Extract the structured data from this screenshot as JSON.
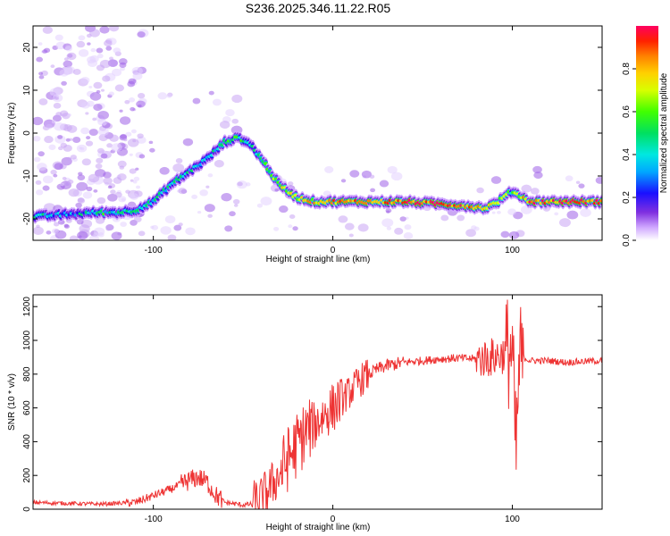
{
  "title": "S236.2025.346.11.22.R05",
  "chart_data": [
    {
      "type": "heatmap",
      "xlabel": "Height of straight line (km)",
      "ylabel": "Frequency (Hz)",
      "xlim": [
        -167,
        150
      ],
      "ylim": [
        -25,
        25
      ],
      "xticks": [
        -100,
        0,
        100
      ],
      "yticks": [
        -20,
        -10,
        0,
        10,
        20
      ],
      "colorbar": {
        "label": "Normalized spectral amplitude",
        "range": [
          0,
          1
        ],
        "ticks": [
          "0.0",
          "0.2",
          "0.4",
          "0.6",
          "0.8"
        ]
      },
      "ridge": {
        "x": [
          -167,
          -150,
          -130,
          -120,
          -110,
          -100,
          -90,
          -80,
          -70,
          -60,
          -52,
          -45,
          -38,
          -30,
          -20,
          -10,
          0,
          20,
          40,
          60,
          75,
          85,
          92,
          100,
          110,
          130,
          148
        ],
        "frequency": [
          -19.5,
          -19,
          -18.5,
          -18.5,
          -18,
          -16,
          -12,
          -9,
          -6,
          -2,
          -1,
          -3,
          -7,
          -12,
          -15,
          -16,
          -16,
          -16,
          -16,
          -16.5,
          -17,
          -17.5,
          -16,
          -13.5,
          -16,
          -16,
          -16
        ],
        "amplitude": [
          0.5,
          0.35,
          0.5,
          0.45,
          0.55,
          0.45,
          0.5,
          0.45,
          0.4,
          0.5,
          0.55,
          0.5,
          0.6,
          0.7,
          0.75,
          0.8,
          0.85,
          0.9,
          0.95,
          0.95,
          0.9,
          0.75,
          0.7,
          0.6,
          0.9,
          0.95,
          0.9
        ]
      }
    },
    {
      "type": "line",
      "xlabel": "Height of straight line (km)",
      "ylabel": "SNR (10 * v/v)",
      "xlim": [
        -167,
        150
      ],
      "ylim": [
        0,
        1270
      ],
      "xticks": [
        -100,
        0,
        100
      ],
      "yticks": [
        0,
        200,
        400,
        600,
        800,
        1000,
        1200
      ],
      "color": "#ee3333",
      "series": [
        {
          "name": "SNR",
          "x": [
            -167,
            -150,
            -130,
            -110,
            -100,
            -90,
            -80,
            -75,
            -70,
            -65,
            -60,
            -50,
            -45,
            -40,
            -35,
            -30,
            -25,
            -20,
            -15,
            -10,
            -5,
            0,
            5,
            10,
            15,
            20,
            25,
            30,
            40,
            50,
            60,
            70,
            80,
            90,
            95,
            100,
            102,
            104,
            106,
            110,
            120,
            130,
            140,
            150
          ],
          "y": [
            40,
            35,
            30,
            40,
            80,
            120,
            170,
            190,
            160,
            80,
            40,
            25,
            30,
            60,
            130,
            200,
            300,
            380,
            460,
            500,
            560,
            600,
            650,
            700,
            760,
            800,
            830,
            850,
            870,
            880,
            890,
            895,
            890,
            900,
            920,
            940,
            300,
            880,
            900,
            880,
            880,
            870,
            875,
            880
          ]
        }
      ],
      "noise": [
        {
          "from": -167,
          "to": -115,
          "amp": 12
        },
        {
          "from": -115,
          "to": -85,
          "amp": 25
        },
        {
          "from": -85,
          "to": -62,
          "amp": 60
        },
        {
          "from": -62,
          "to": -45,
          "amp": 15
        },
        {
          "from": -45,
          "to": -30,
          "amp": 140
        },
        {
          "from": -30,
          "to": -12,
          "amp": 200
        },
        {
          "from": -12,
          "to": 5,
          "amp": 150
        },
        {
          "from": 5,
          "to": 20,
          "amp": 100
        },
        {
          "from": 20,
          "to": 40,
          "amp": 40
        },
        {
          "from": 40,
          "to": 80,
          "amp": 25
        },
        {
          "from": 80,
          "to": 96,
          "amp": 120
        },
        {
          "from": 96,
          "to": 106,
          "amp": 350
        },
        {
          "from": 106,
          "to": 150,
          "amp": 20
        }
      ]
    }
  ]
}
